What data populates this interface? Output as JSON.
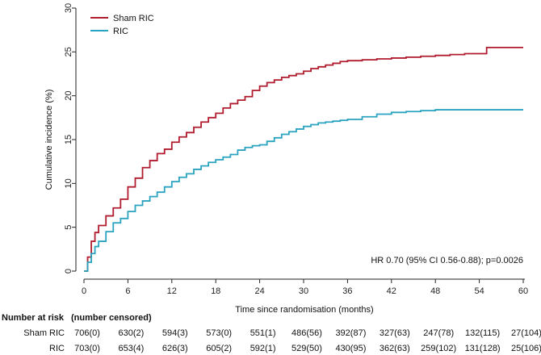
{
  "chart_data": {
    "type": "line",
    "title": "",
    "xlabel": "Time since randomisation (months)",
    "ylabel": "Cumulative incidence (%)",
    "xlim": [
      0,
      60
    ],
    "ylim": [
      0,
      30
    ],
    "xticks": [
      0,
      6,
      12,
      18,
      24,
      30,
      36,
      42,
      48,
      54,
      60
    ],
    "yticks": [
      0,
      5,
      10,
      15,
      20,
      25,
      30
    ],
    "grid": false,
    "legend_position": "top-left",
    "annotation": "HR 0.70 (95% CI 0.56-0.88); p=0.0026",
    "series": [
      {
        "name": "Sham RIC",
        "color": "#b01c2e",
        "x": [
          0,
          0.5,
          1,
          1.5,
          2,
          3,
          4,
          5,
          6,
          7,
          8,
          9,
          10,
          11,
          12,
          13,
          14,
          15,
          16,
          17,
          18,
          19,
          20,
          21,
          22,
          23,
          24,
          25,
          26,
          27,
          28,
          29,
          30,
          31,
          32,
          33,
          34,
          35,
          36,
          38,
          40,
          42,
          44,
          46,
          48,
          50,
          52,
          54,
          55,
          56,
          58,
          60
        ],
        "values": [
          0,
          1.6,
          3.4,
          4.4,
          5.2,
          6.3,
          7.2,
          8.2,
          9.6,
          10.6,
          11.8,
          12.6,
          13.4,
          13.9,
          14.7,
          15.3,
          15.8,
          16.4,
          17.0,
          17.5,
          18.0,
          18.6,
          19.1,
          19.5,
          19.9,
          20.6,
          21.1,
          21.5,
          21.8,
          22.1,
          22.3,
          22.5,
          22.8,
          23.1,
          23.3,
          23.5,
          23.7,
          23.9,
          24.0,
          24.1,
          24.2,
          24.3,
          24.4,
          24.5,
          24.6,
          24.7,
          24.8,
          24.8,
          25.5,
          25.5,
          25.5,
          25.5
        ]
      },
      {
        "name": "RIC",
        "color": "#2aa3c0",
        "x": [
          0,
          0.5,
          1,
          1.5,
          2,
          3,
          4,
          5,
          6,
          7,
          8,
          9,
          10,
          11,
          12,
          13,
          14,
          15,
          16,
          17,
          18,
          19,
          20,
          21,
          22,
          23,
          24,
          25,
          26,
          27,
          28,
          29,
          30,
          31,
          32,
          33,
          34,
          35,
          36,
          38,
          40,
          42,
          44,
          46,
          48,
          50,
          52,
          54,
          56,
          58,
          60
        ],
        "values": [
          0,
          1.0,
          2.0,
          2.8,
          3.4,
          4.5,
          5.5,
          6.0,
          6.8,
          7.5,
          8.0,
          8.5,
          9.0,
          9.6,
          10.2,
          10.7,
          11.1,
          11.6,
          12.0,
          12.4,
          12.7,
          13.0,
          13.3,
          13.8,
          14.1,
          14.3,
          14.4,
          14.8,
          15.2,
          15.6,
          15.9,
          16.2,
          16.5,
          16.7,
          16.9,
          17.0,
          17.1,
          17.2,
          17.3,
          17.6,
          17.9,
          18.1,
          18.2,
          18.3,
          18.4,
          18.4,
          18.4,
          18.4,
          18.4,
          18.4,
          18.4
        ]
      }
    ]
  },
  "risk_table": {
    "title": "Number at risk",
    "subtitle": "(number censored)",
    "rows": [
      {
        "label": "Sham RIC",
        "cells": [
          "706(0)",
          "630(2)",
          "594(3)",
          "573(0)",
          "551(1)",
          "486(56)",
          "392(87)",
          "327(63)",
          "247(78)",
          "132(115)",
          "27(104)"
        ]
      },
      {
        "label": "RIC",
        "cells": [
          "703(0)",
          "653(4)",
          "626(3)",
          "605(2)",
          "592(1)",
          "529(50)",
          "430(95)",
          "362(63)",
          "259(102)",
          "131(128)",
          "25(106)"
        ]
      }
    ]
  }
}
